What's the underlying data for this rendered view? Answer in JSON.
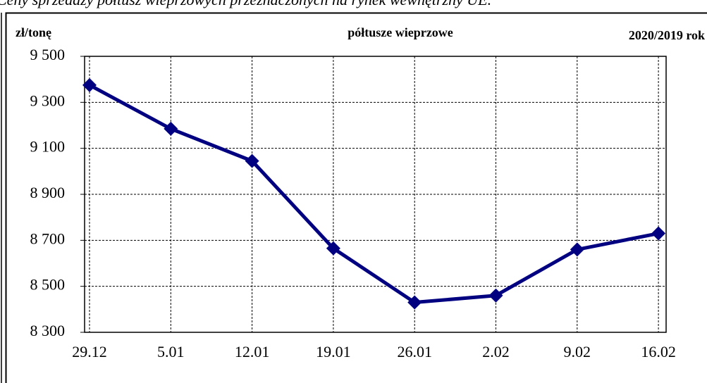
{
  "header": "Ceny sprzedaży półtusz wieprzowych przeznaczonych na rynek wewnętrzny UE.",
  "chart_data": {
    "type": "line",
    "title": "półtusze wieprzowe",
    "y_label": "zł/tonę",
    "note": "2020/2019 rok",
    "categories": [
      "29.12",
      "5.01",
      "12.01",
      "19.01",
      "26.01",
      "2.02",
      "9.02",
      "16.02"
    ],
    "series": [
      {
        "name": "półtusze wieprzowe",
        "color": "#000080",
        "values": [
          9375,
          9185,
          9045,
          8665,
          8430,
          8460,
          8660,
          8730
        ]
      }
    ],
    "ylim": [
      8300,
      9500
    ],
    "yticks": [
      {
        "value": 8300,
        "label": "8 300"
      },
      {
        "value": 8500,
        "label": "8 500"
      },
      {
        "value": 8700,
        "label": "8 700"
      },
      {
        "value": 8900,
        "label": "8 900"
      },
      {
        "value": 9100,
        "label": "9 100"
      },
      {
        "value": 9300,
        "label": "9 300"
      },
      {
        "value": 9500,
        "label": "9 500"
      }
    ],
    "grid": true
  }
}
